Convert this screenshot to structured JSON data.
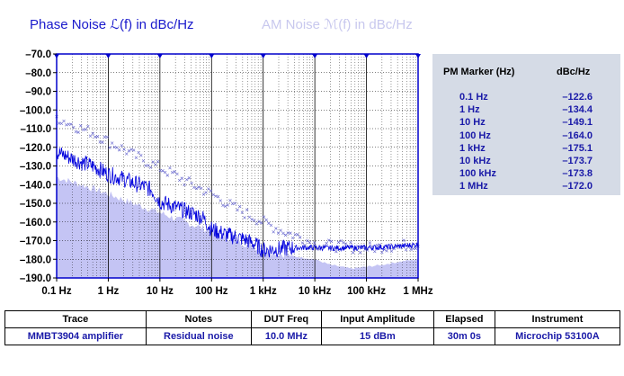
{
  "titles": {
    "pm": "Phase  Noise ℒ(f) in dBc/Hz",
    "am": "AM  Noise ℳ(f) in dBc/Hz"
  },
  "colors": {
    "pm_trace": "#0000dd",
    "am_fill": "#c4c4f4",
    "am_marker": "#6060cc",
    "grid": "#000000",
    "plot_border": "#0000cc",
    "panel_bg": "#d5dbe6"
  },
  "chart_data": {
    "type": "line",
    "x_scale": "log",
    "xlim": [
      0.1,
      1000000
    ],
    "ylim": [
      -190,
      -70
    ],
    "x_ticks": [
      0.1,
      1,
      10,
      100,
      1000,
      10000,
      100000,
      1000000
    ],
    "x_tick_labels": [
      "0.1 Hz",
      "1 Hz",
      "10 Hz",
      "100 Hz",
      "1 kHz",
      "10 kHz",
      "100 kHz",
      "1 MHz"
    ],
    "y_ticks": [
      -70,
      -80,
      -90,
      -100,
      -110,
      -120,
      -130,
      -140,
      -150,
      -160,
      -170,
      -180,
      -190
    ],
    "y_tick_labels": [
      "–70.0",
      "–80.0",
      "–90.0",
      "–100.0",
      "–110.0",
      "–120.0",
      "–130.0",
      "–140.0",
      "–150.0",
      "–160.0",
      "–170.0",
      "–180.0",
      "–190.0"
    ],
    "grid": true,
    "series": [
      {
        "style": "line",
        "x": [
          0.1,
          0.2,
          0.3,
          0.5,
          0.7,
          1,
          2,
          3,
          5,
          7,
          10,
          20,
          30,
          50,
          70,
          100,
          200,
          300,
          500,
          700,
          1000,
          2000,
          3000,
          5000,
          7000,
          10000,
          20000,
          50000,
          100000,
          200000,
          500000,
          1000000
        ],
        "y": [
          -122.6,
          -126,
          -128,
          -130,
          -132,
          -134.4,
          -137,
          -139,
          -141,
          -143,
          -149.1,
          -152,
          -154,
          -156,
          -158,
          -164.0,
          -167,
          -168,
          -170,
          -172,
          -175.1,
          -174.5,
          -174,
          -173.8,
          -173.7,
          -173.7,
          -174,
          -173.8,
          -173.8,
          -173.5,
          -173,
          -172.0
        ]
      },
      {
        "style": "area",
        "x": [
          0.1,
          0.3,
          1,
          3,
          10,
          30,
          100,
          300,
          1000,
          3000,
          10000,
          20000,
          50000,
          100000,
          200000,
          500000,
          1000000
        ],
        "y": [
          -136,
          -140,
          -145,
          -150,
          -155,
          -160,
          -165,
          -170,
          -175,
          -178,
          -180,
          -183,
          -185,
          -184,
          -183,
          -181,
          -180
        ]
      },
      {
        "style": "markers",
        "x": [
          0.1,
          0.2,
          0.3,
          0.5,
          1,
          2,
          3,
          5,
          10,
          20,
          30,
          50,
          100,
          200,
          300,
          500,
          1000,
          2000,
          3000,
          5000,
          10000,
          30000,
          100000,
          300000,
          1000000
        ],
        "y": [
          -104,
          -108,
          -110,
          -112,
          -117,
          -121,
          -124,
          -127,
          -131,
          -135,
          -138,
          -141,
          -145,
          -150,
          -153,
          -156,
          -160,
          -164,
          -166,
          -168,
          -172,
          -173,
          -174,
          -173,
          -172
        ]
      }
    ]
  },
  "marker_table": {
    "col_freq": "PM Marker (Hz)",
    "col_val": "dBc/Hz",
    "rows": [
      {
        "freq": "0.1 Hz",
        "value": "–122.6"
      },
      {
        "freq": "1 Hz",
        "value": "–134.4"
      },
      {
        "freq": "10 Hz",
        "value": "–149.1"
      },
      {
        "freq": "100 Hz",
        "value": "–164.0"
      },
      {
        "freq": "1 kHz",
        "value": "–175.1"
      },
      {
        "freq": "10 kHz",
        "value": "–173.7"
      },
      {
        "freq": "100 kHz",
        "value": "–173.8"
      },
      {
        "freq": "1 MHz",
        "value": "–172.0"
      }
    ]
  },
  "info_table": {
    "headers": [
      "Trace",
      "Notes",
      "DUT Freq",
      "Input Amplitude",
      "Elapsed",
      "Instrument"
    ],
    "row": [
      "MMBT3904 amplifier",
      "Residual noise",
      "10.0 MHz",
      "15 dBm",
      "30m 0s",
      "Microchip 53100A"
    ]
  }
}
